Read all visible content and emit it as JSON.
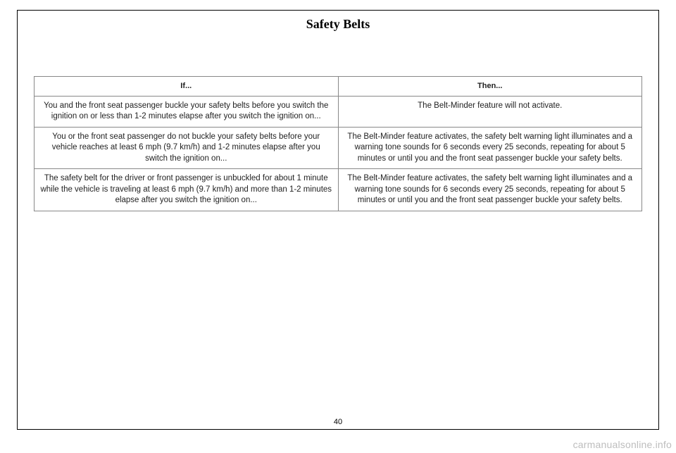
{
  "page": {
    "title": "Safety Belts",
    "number": "40"
  },
  "table": {
    "headers": {
      "if": "If...",
      "then": "Then..."
    },
    "rows": [
      {
        "if": "You and the front seat passenger buckle your safety belts before you switch the ignition on or less than 1-2 minutes elapse after you switch the ignition on...",
        "then": "The Belt-Minder feature will not activate."
      },
      {
        "if": "You or the front seat passenger do not buckle your safety belts before your vehicle reaches at least 6 mph (9.7 km/h) and 1-2 minutes elapse after you switch the ignition on...",
        "then": "The Belt-Minder feature activates, the safety belt warning light illuminates and a warning tone sounds for 6 seconds every 25 seconds, repeating for about 5 minutes or until you and the front seat passenger buckle your safety belts."
      },
      {
        "if": "The safety belt for the driver or front passenger is unbuckled for about 1 minute while the vehicle is traveling at least 6 mph (9.7 km/h) and more than 1-2 minutes elapse after you switch the ignition on...",
        "then": "The Belt-Minder feature activates, the safety belt warning light illuminates and a warning tone sounds for 6 seconds every 25 seconds, repeating for about 5 minutes or until you and the front seat passenger buckle your safety belts."
      }
    ]
  },
  "watermark": "carmanualsonline.info"
}
